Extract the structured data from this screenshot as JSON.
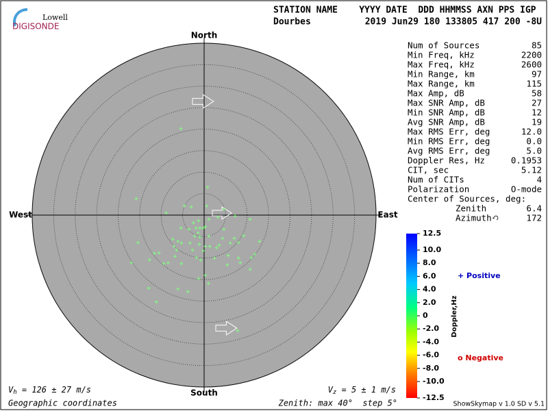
{
  "logo": {
    "brand": "Lowell",
    "product": "DIGISONDE"
  },
  "header": {
    "labels": "STATION NAME    YYYY DATE  DDD HHMMSS AXN PPS IGP",
    "station": "Dourbes",
    "values": "2019 Jun29 180 133805 417 200 -8U"
  },
  "stats": {
    "rows": [
      [
        "Num of Sources",
        "85"
      ],
      [
        "Min Freq, kHz",
        "2200"
      ],
      [
        "Max Freq, kHz",
        "2600"
      ],
      [
        "Min Range, km",
        "97"
      ],
      [
        "Max Range, km",
        "115"
      ],
      [
        "Max Amp, dB",
        "58"
      ],
      [
        "Max SNR Amp, dB",
        "27"
      ],
      [
        "Min SNR Amp, dB",
        "12"
      ],
      [
        "Avg SNR Amp, dB",
        "19"
      ],
      [
        "Max RMS Err, deg",
        "12.0"
      ],
      [
        "Min RMS Err, deg",
        "0.0"
      ],
      [
        "Avg RMS Err, deg",
        "5.0"
      ],
      [
        "Doppler Res, Hz",
        "0.1953"
      ],
      [
        "CIT, sec",
        "5.12"
      ],
      [
        "Num of CITs",
        "4"
      ],
      [
        "Polarization",
        "O-mode"
      ]
    ],
    "center_title": "Center of Sources, deg:",
    "center_rows": [
      [
        "Zenith",
        "6.4"
      ],
      [
        "Azimuth",
        "172"
      ]
    ]
  },
  "colorbar": {
    "title": "Doppler,Hz",
    "lim": [
      -12.5,
      12.5
    ],
    "ticks": [
      12.5,
      {
        "value": 10,
        "label": "10.0"
      },
      {
        "value": 8,
        "label": "8.0"
      },
      {
        "value": 6,
        "label": "6.0"
      },
      {
        "value": 4,
        "label": "4.0"
      },
      {
        "value": 2,
        "label": "2.0"
      },
      0,
      {
        "value": -2,
        "label": "-2.0"
      },
      {
        "value": -4,
        "label": "-4.0"
      },
      {
        "value": -6,
        "label": "-6.0"
      },
      {
        "value": -8,
        "label": "-8.0"
      },
      {
        "value": -10,
        "label": "-10.0"
      },
      -12.5
    ],
    "positive": "+ Positive",
    "negative": "o Negative"
  },
  "chart_data": {
    "type": "scatter",
    "north": "North",
    "south": "South",
    "east": "East",
    "west": "West",
    "rlim": [
      0,
      40
    ],
    "rticks": [
      5,
      10,
      15,
      20,
      25,
      30,
      35,
      40
    ],
    "color": "#80ff80",
    "x": [
      -5.4,
      0.8,
      -15.8,
      -4.6,
      -3.0,
      0.6,
      -8.8,
      4.6,
      7.2,
      3.2,
      10.7,
      1.1,
      -1.3,
      -2.5,
      -5.4,
      -1.9,
      -1.0,
      -0.2,
      0.3,
      -3.5,
      -1.4,
      -2.2,
      -1.0,
      4.6,
      4.3,
      7.0,
      9.2,
      1.1,
      8.0,
      12.9,
      -15.4,
      -7.3,
      -6.1,
      -5.3,
      -7.0,
      -3.3,
      -1.1,
      0.3,
      1.3,
      2.9,
      3.5,
      6.1,
      -2.7,
      -0.2,
      -10.5,
      -11.6,
      -6.4,
      -6.8,
      11.8,
      11.0,
      -1.8,
      -0.8,
      2.4,
      5.6,
      8.0,
      8.4,
      -12.7,
      -9.4,
      -8.4,
      -16.9,
      -5.3,
      5.4,
      10.7,
      0.3,
      -1.3,
      1.0,
      -12.9,
      -6.1,
      -3.8,
      -11.1,
      7.8
    ],
    "y": [
      20.1,
      6.5,
      3.8,
      2.2,
      1.9,
      2.1,
      0.5,
      1.4,
      -0.2,
      -0.5,
      -1.0,
      -1.0,
      -1.3,
      -1.8,
      -3.0,
      -3.0,
      -3.0,
      -3.0,
      -2.7,
      -3.3,
      -4.1,
      -4.9,
      -5.1,
      -3.3,
      -5.4,
      -5.4,
      -4.8,
      -4.9,
      -6.4,
      -6.1,
      -6.4,
      -5.6,
      -6.1,
      -6.5,
      -7.3,
      -6.5,
      -6.8,
      -7.3,
      -7.3,
      -7.6,
      -7.0,
      -6.5,
      -8.1,
      -8.3,
      -8.8,
      -8.9,
      -8.1,
      -9.6,
      -9.1,
      -9.9,
      -9.9,
      -10.5,
      -10.0,
      -9.4,
      -10.0,
      -11.1,
      -10.4,
      -11.3,
      -11.1,
      -11.1,
      -11.3,
      -11.6,
      -12.6,
      -14.0,
      -14.8,
      -15.9,
      -17.0,
      -17.2,
      -17.8,
      -20.2,
      -26.9
    ]
  },
  "footer": {
    "vh_symbol": "V",
    "vh_sub": "h",
    "vh_text": " = 126 ± 27 m/s",
    "vz_symbol": "V",
    "vz_sub": "z",
    "vz_text": " = 5 ± 1 m/s",
    "coords": "Geographic coordinates",
    "zenith": "Zenith: max 40°  step 5°",
    "version": "ShowSkymap v 1.0  SD v 5.1"
  }
}
